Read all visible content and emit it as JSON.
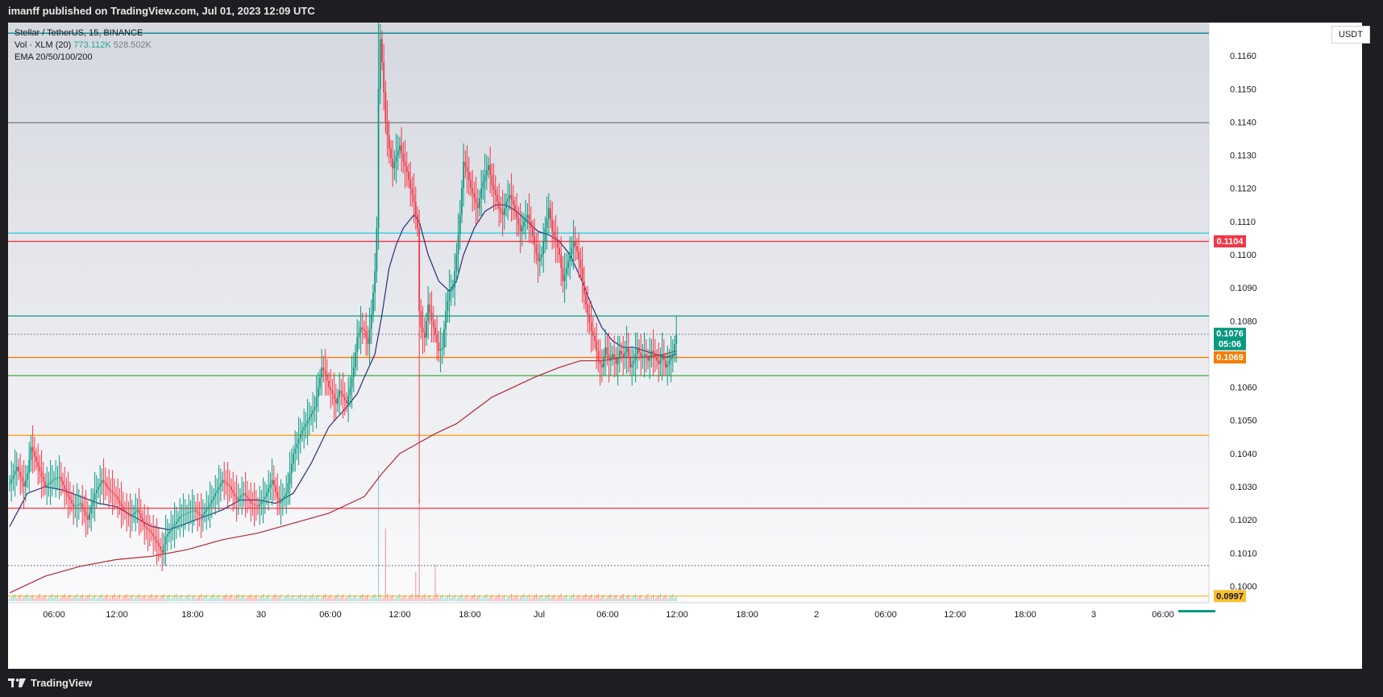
{
  "header": {
    "publisher_text": "imanff published on TradingView.com, Jul 01, 2023 12:09 UTC"
  },
  "footer": {
    "brand": "TradingView"
  },
  "legend": {
    "symbol": "Stellar / TetherUS, 15, BINANCE",
    "vol_label": "Vol · XLM (20)",
    "vol_value": "773.112K",
    "vol_ma": "528.502K",
    "ema_label": "EMA 20/50/100/200"
  },
  "price_axis": {
    "currency": "USDT",
    "ticks": [
      "0.1160",
      "0.1150",
      "0.1140",
      "0.1130",
      "0.1120",
      "0.1110",
      "0.1100",
      "0.1090",
      "0.1080",
      "0.1060",
      "0.1050",
      "0.1040",
      "0.1030",
      "0.1020",
      "0.1010",
      "0.1000"
    ],
    "labels": [
      {
        "text": "0.1104",
        "value": 0.1104,
        "color": "#f23645"
      },
      {
        "text": "0.1076",
        "sub": "05:06",
        "value": 0.1076,
        "color": "#089981"
      },
      {
        "text": "0.1069",
        "value": 0.1069,
        "color": "#f57c00"
      },
      {
        "text": "0.0997",
        "value": 0.0997,
        "color": "#f9c02a"
      }
    ]
  },
  "time_axis": {
    "ticks": [
      "06:00",
      "12:00",
      "18:00",
      "30",
      "06:00",
      "12:00",
      "18:00",
      "Jul",
      "06:00",
      "12:00",
      "18:00",
      "2",
      "06:00",
      "12:00",
      "18:00",
      "3",
      "06:00"
    ]
  },
  "chart_data": {
    "type": "candlestick",
    "symbol": "Stellar / TetherUS",
    "exchange": "BINANCE",
    "interval": "15",
    "y_range": [
      0.0995,
      0.117
    ],
    "horizontal_lines": [
      {
        "value": 0.11668,
        "color": "#00838f"
      },
      {
        "value": 0.11398,
        "color": "#787b86"
      },
      {
        "value": 0.11065,
        "color": "#26c6da"
      },
      {
        "value": 0.1104,
        "color": "#f23645"
      },
      {
        "value": 0.10815,
        "color": "#089981"
      },
      {
        "value": 0.1076,
        "color": "#787b86",
        "dotted": true
      },
      {
        "value": 0.1069,
        "color": "#f57c00"
      },
      {
        "value": 0.10635,
        "color": "#4caf50"
      },
      {
        "value": 0.10455,
        "color": "#ff9800"
      },
      {
        "value": 0.10235,
        "color": "#f23645"
      },
      {
        "value": 0.10062,
        "color": "#787b86",
        "dotted": true
      },
      {
        "value": 0.0997,
        "color": "#f9c02a"
      }
    ],
    "close_path": [
      [
        0,
        0.1031
      ],
      [
        4,
        0.1036
      ],
      [
        8,
        0.103
      ],
      [
        10,
        0.1034
      ],
      [
        12,
        0.1042
      ],
      [
        16,
        0.1036
      ],
      [
        20,
        0.103
      ],
      [
        24,
        0.1032
      ],
      [
        28,
        0.1033
      ],
      [
        32,
        0.1028
      ],
      [
        36,
        0.1024
      ],
      [
        40,
        0.1025
      ],
      [
        44,
        0.102
      ],
      [
        48,
        0.1028
      ],
      [
        52,
        0.1032
      ],
      [
        56,
        0.1029
      ],
      [
        60,
        0.1027
      ],
      [
        64,
        0.1023
      ],
      [
        68,
        0.1021
      ],
      [
        72,
        0.1023
      ],
      [
        76,
        0.1018
      ],
      [
        80,
        0.1016
      ],
      [
        84,
        0.1012
      ],
      [
        86,
        0.101
      ],
      [
        88,
        0.1015
      ],
      [
        92,
        0.1018
      ],
      [
        96,
        0.1021
      ],
      [
        100,
        0.1022
      ],
      [
        104,
        0.1023
      ],
      [
        108,
        0.1021
      ],
      [
        112,
        0.1024
      ],
      [
        116,
        0.1028
      ],
      [
        120,
        0.1032
      ],
      [
        124,
        0.103
      ],
      [
        128,
        0.1026
      ],
      [
        132,
        0.1028
      ],
      [
        136,
        0.1025
      ],
      [
        140,
        0.1024
      ],
      [
        144,
        0.1027
      ],
      [
        148,
        0.1032
      ],
      [
        152,
        0.1025
      ],
      [
        156,
        0.1028
      ],
      [
        160,
        0.104
      ],
      [
        164,
        0.1046
      ],
      [
        168,
        0.105
      ],
      [
        172,
        0.1054
      ],
      [
        174,
        0.106
      ],
      [
        176,
        0.1066
      ],
      [
        178,
        0.1064
      ],
      [
        180,
        0.106
      ],
      [
        182,
        0.1058
      ],
      [
        184,
        0.1055
      ],
      [
        186,
        0.1059
      ],
      [
        188,
        0.1057
      ],
      [
        190,
        0.1055
      ],
      [
        192,
        0.106
      ],
      [
        194,
        0.1066
      ],
      [
        196,
        0.1075
      ],
      [
        198,
        0.1078
      ],
      [
        200,
        0.1077
      ],
      [
        202,
        0.1073
      ],
      [
        204,
        0.1082
      ],
      [
        206,
        0.1095
      ],
      [
        207,
        0.1108
      ],
      [
        208,
        0.115
      ],
      [
        209,
        0.1165
      ],
      [
        210,
        0.1158
      ],
      [
        212,
        0.114
      ],
      [
        214,
        0.1132
      ],
      [
        216,
        0.1126
      ],
      [
        218,
        0.113
      ],
      [
        220,
        0.1133
      ],
      [
        222,
        0.1128
      ],
      [
        224,
        0.1125
      ],
      [
        226,
        0.112
      ],
      [
        228,
        0.1116
      ],
      [
        230,
        0.1108
      ],
      [
        231,
        0.1083
      ],
      [
        232,
        0.1078
      ],
      [
        234,
        0.1075
      ],
      [
        236,
        0.1085
      ],
      [
        238,
        0.108
      ],
      [
        240,
        0.1076
      ],
      [
        242,
        0.1071
      ],
      [
        244,
        0.1072
      ],
      [
        246,
        0.1083
      ],
      [
        248,
        0.1089
      ],
      [
        250,
        0.109
      ],
      [
        252,
        0.11
      ],
      [
        254,
        0.1112
      ],
      [
        256,
        0.1128
      ],
      [
        258,
        0.1125
      ],
      [
        260,
        0.112
      ],
      [
        262,
        0.1117
      ],
      [
        264,
        0.1114
      ],
      [
        266,
        0.112
      ],
      [
        268,
        0.1124
      ],
      [
        270,
        0.1127
      ],
      [
        272,
        0.1121
      ],
      [
        274,
        0.1118
      ],
      [
        276,
        0.1114
      ],
      [
        278,
        0.1112
      ],
      [
        280,
        0.1116
      ],
      [
        282,
        0.1118
      ],
      [
        284,
        0.1115
      ],
      [
        286,
        0.1111
      ],
      [
        288,
        0.1107
      ],
      [
        290,
        0.111
      ],
      [
        292,
        0.1112
      ],
      [
        294,
        0.1108
      ],
      [
        296,
        0.1103
      ],
      [
        298,
        0.1098
      ],
      [
        300,
        0.11
      ],
      [
        302,
        0.1108
      ],
      [
        304,
        0.1114
      ],
      [
        306,
        0.1107
      ],
      [
        308,
        0.1104
      ],
      [
        310,
        0.11
      ],
      [
        312,
        0.1092
      ],
      [
        314,
        0.1096
      ],
      [
        316,
        0.11
      ],
      [
        318,
        0.1104
      ],
      [
        320,
        0.1101
      ],
      [
        322,
        0.1096
      ],
      [
        324,
        0.1088
      ],
      [
        326,
        0.1082
      ],
      [
        328,
        0.1077
      ],
      [
        330,
        0.1074
      ],
      [
        332,
        0.1068
      ],
      [
        334,
        0.1066
      ],
      [
        336,
        0.1072
      ],
      [
        338,
        0.1068
      ],
      [
        340,
        0.107
      ],
      [
        342,
        0.1067
      ],
      [
        344,
        0.1071
      ],
      [
        346,
        0.1069
      ],
      [
        348,
        0.1072
      ],
      [
        350,
        0.1066
      ],
      [
        352,
        0.1068
      ],
      [
        354,
        0.1072
      ],
      [
        356,
        0.1069
      ],
      [
        358,
        0.107
      ],
      [
        360,
        0.1068
      ],
      [
        362,
        0.1071
      ],
      [
        364,
        0.1069
      ],
      [
        366,
        0.1067
      ],
      [
        368,
        0.107
      ],
      [
        370,
        0.1066
      ],
      [
        372,
        0.1068
      ],
      [
        374,
        0.107
      ],
      [
        376,
        0.1076
      ]
    ],
    "ema_short": [
      [
        0,
        0.1018
      ],
      [
        10,
        0.1028
      ],
      [
        20,
        0.103
      ],
      [
        30,
        0.1029
      ],
      [
        40,
        0.1027
      ],
      [
        50,
        0.1025
      ],
      [
        60,
        0.1024
      ],
      [
        70,
        0.1021
      ],
      [
        80,
        0.1018
      ],
      [
        90,
        0.1017
      ],
      [
        100,
        0.1019
      ],
      [
        110,
        0.1021
      ],
      [
        120,
        0.1023
      ],
      [
        130,
        0.1026
      ],
      [
        140,
        0.1026
      ],
      [
        150,
        0.1025
      ],
      [
        160,
        0.1028
      ],
      [
        170,
        0.1037
      ],
      [
        180,
        0.1048
      ],
      [
        190,
        0.1054
      ],
      [
        196,
        0.1058
      ],
      [
        200,
        0.1063
      ],
      [
        206,
        0.107
      ],
      [
        210,
        0.1082
      ],
      [
        214,
        0.1096
      ],
      [
        218,
        0.1103
      ],
      [
        222,
        0.1108
      ],
      [
        228,
        0.1112
      ],
      [
        231,
        0.111
      ],
      [
        236,
        0.11
      ],
      [
        242,
        0.1092
      ],
      [
        248,
        0.1089
      ],
      [
        252,
        0.1092
      ],
      [
        256,
        0.11
      ],
      [
        262,
        0.1108
      ],
      [
        268,
        0.1113
      ],
      [
        274,
        0.1115
      ],
      [
        280,
        0.1115
      ],
      [
        286,
        0.1113
      ],
      [
        292,
        0.111
      ],
      [
        298,
        0.1107
      ],
      [
        304,
        0.1106
      ],
      [
        310,
        0.1104
      ],
      [
        316,
        0.11
      ],
      [
        322,
        0.1093
      ],
      [
        328,
        0.1085
      ],
      [
        334,
        0.1078
      ],
      [
        340,
        0.1074
      ],
      [
        346,
        0.1072
      ],
      [
        352,
        0.1072
      ],
      [
        358,
        0.1071
      ],
      [
        364,
        0.107
      ],
      [
        370,
        0.1069
      ],
      [
        376,
        0.107
      ]
    ],
    "ema_long": [
      [
        0,
        0.0998
      ],
      [
        20,
        0.1003
      ],
      [
        40,
        0.1006
      ],
      [
        60,
        0.1008
      ],
      [
        80,
        0.1009
      ],
      [
        100,
        0.1011
      ],
      [
        120,
        0.1014
      ],
      [
        140,
        0.1016
      ],
      [
        160,
        0.1019
      ],
      [
        180,
        0.1022
      ],
      [
        200,
        0.1027
      ],
      [
        210,
        0.1034
      ],
      [
        220,
        0.104
      ],
      [
        230,
        0.1043
      ],
      [
        240,
        0.1046
      ],
      [
        252,
        0.1049
      ],
      [
        262,
        0.1053
      ],
      [
        272,
        0.1057
      ],
      [
        284,
        0.106
      ],
      [
        296,
        0.1063
      ],
      [
        310,
        0.1066
      ],
      [
        322,
        0.1068
      ],
      [
        334,
        0.1068
      ],
      [
        346,
        0.1069
      ],
      [
        358,
        0.1069
      ],
      [
        370,
        0.107
      ],
      [
        376,
        0.1071
      ]
    ],
    "volume": {
      "spikes": [
        {
          "i": 208,
          "value": 18
        },
        {
          "i": 212,
          "value": 10
        },
        {
          "i": 231,
          "value": 14
        },
        {
          "i": 229,
          "value": 4
        },
        {
          "i": 240,
          "value": 5
        }
      ]
    }
  }
}
